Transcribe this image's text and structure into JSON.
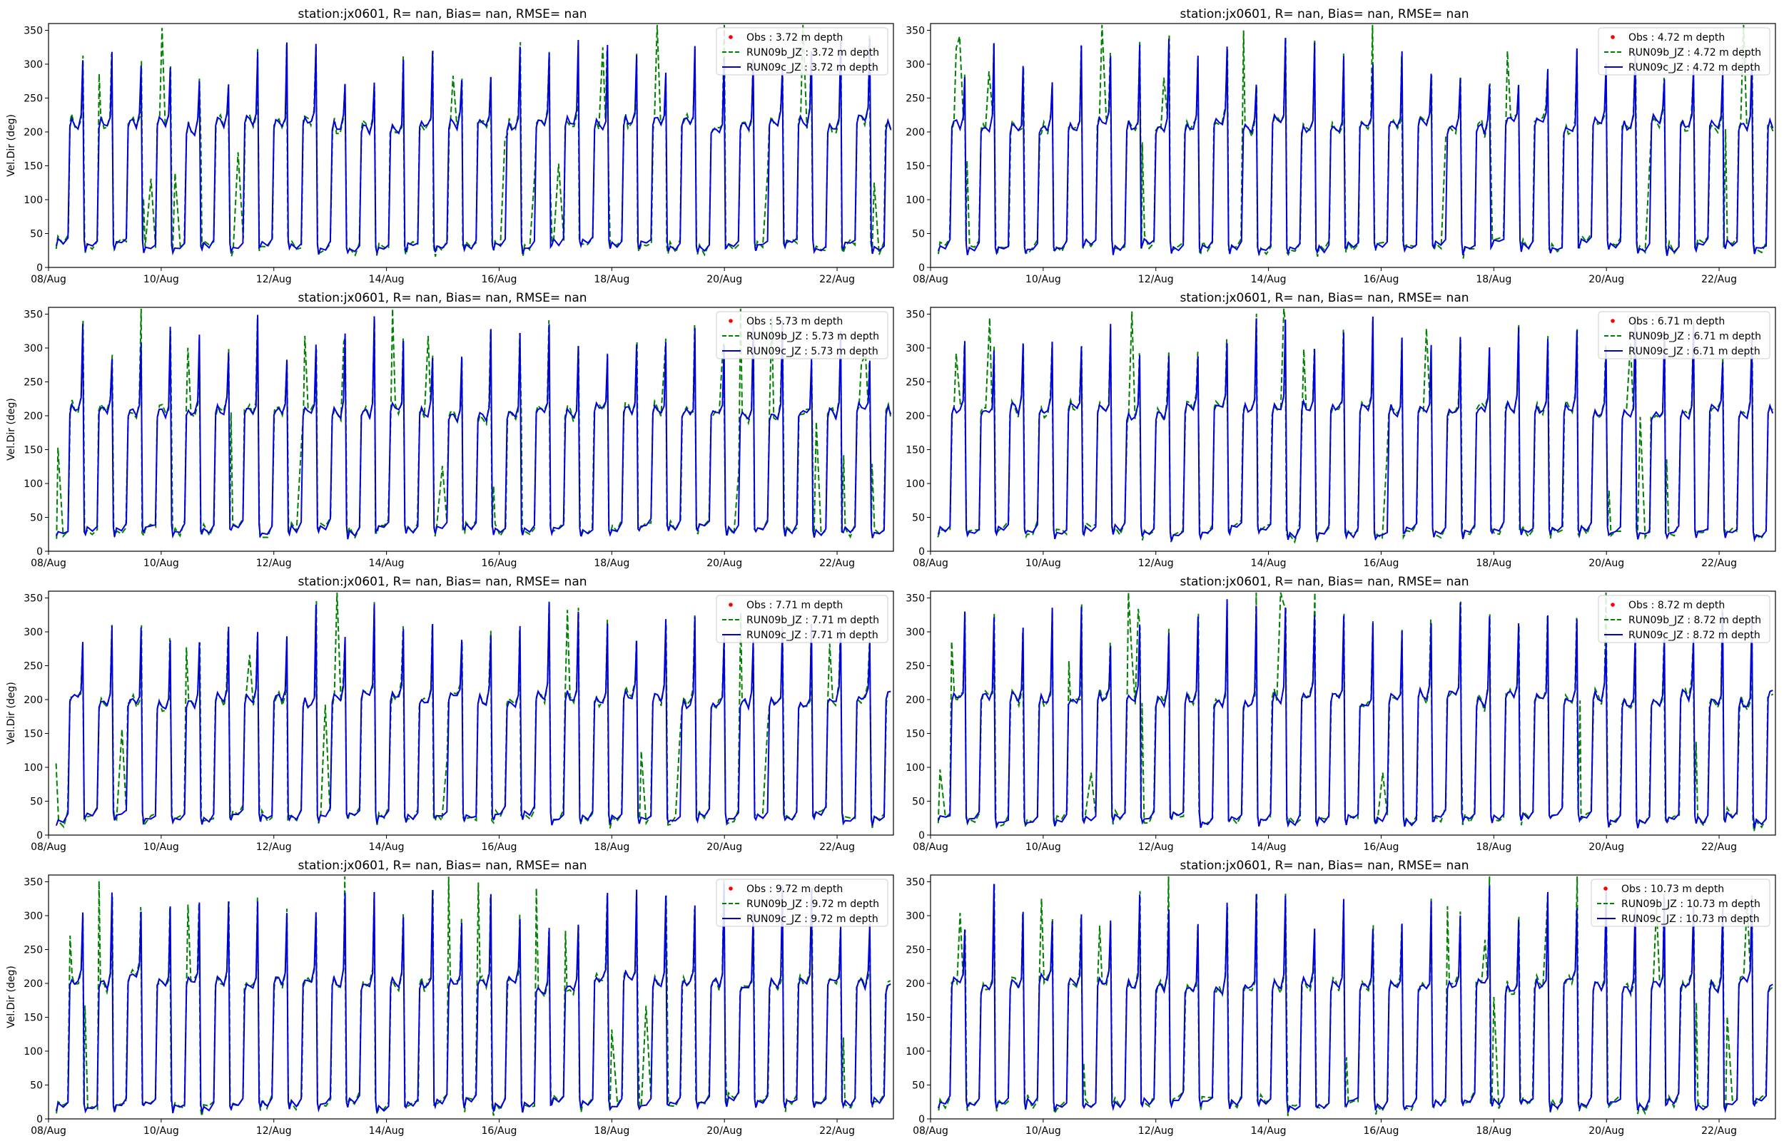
{
  "figure": {
    "background": "#ffffff",
    "colors": {
      "obs": "#ff0000",
      "run09b": "#008000",
      "run09c": "#0000dd"
    }
  },
  "chart_data": [
    {
      "type": "line",
      "title": "station:jx0601, R=   nan, Bias=    nan, RMSE=    nan",
      "ylabel": "Vel.Dir (deg)",
      "xlabel": "",
      "xlim": [
        "08/Aug 00:00",
        "23/Aug 00:00"
      ],
      "ylim": [
        0,
        360
      ],
      "xticks": [
        "08/Aug",
        "10/Aug",
        "12/Aug",
        "14/Aug",
        "16/Aug",
        "18/Aug",
        "20/Aug",
        "22/Aug"
      ],
      "yticks": [
        0,
        50,
        100,
        150,
        200,
        250,
        300,
        350
      ],
      "legend_position": "top-right",
      "series": [
        {
          "name": "Obs : 3.72 m depth",
          "style": "markers",
          "values": []
        },
        {
          "name": "RUN09b_JZ : 3.72 m depth",
          "style": "dashed"
        },
        {
          "name": "RUN09c_JZ : 3.72 m depth",
          "style": "solid"
        }
      ],
      "pattern": {
        "period_hours": 12.42,
        "high_deg": 210,
        "low_deg": 30,
        "spike_deg": 290
      }
    },
    {
      "type": "line",
      "title": "station:jx0601, R=   nan, Bias=    nan, RMSE=    nan",
      "ylabel": "",
      "xlabel": "",
      "xlim": [
        "08/Aug 00:00",
        "23/Aug 00:00"
      ],
      "ylim": [
        0,
        360
      ],
      "xticks": [
        "08/Aug",
        "10/Aug",
        "12/Aug",
        "14/Aug",
        "16/Aug",
        "18/Aug",
        "20/Aug",
        "22/Aug"
      ],
      "yticks": [
        0,
        50,
        100,
        150,
        200,
        250,
        300,
        350
      ],
      "legend_position": "top-right",
      "series": [
        {
          "name": "Obs : 4.72 m depth",
          "style": "markers",
          "values": []
        },
        {
          "name": "RUN09b_JZ : 4.72 m depth",
          "style": "dashed"
        },
        {
          "name": "RUN09c_JZ : 4.72 m depth",
          "style": "solid"
        }
      ],
      "pattern": {
        "period_hours": 12.42,
        "high_deg": 210,
        "low_deg": 30,
        "spike_deg": 290
      }
    },
    {
      "type": "line",
      "title": "station:jx0601, R=   nan, Bias=    nan, RMSE=    nan",
      "ylabel": "Vel.Dir (deg)",
      "xlabel": "",
      "xlim": [
        "08/Aug 00:00",
        "23/Aug 00:00"
      ],
      "ylim": [
        0,
        360
      ],
      "xticks": [
        "08/Aug",
        "10/Aug",
        "12/Aug",
        "14/Aug",
        "16/Aug",
        "18/Aug",
        "20/Aug",
        "22/Aug"
      ],
      "yticks": [
        0,
        50,
        100,
        150,
        200,
        250,
        300,
        350
      ],
      "legend_position": "top-right",
      "series": [
        {
          "name": "Obs : 5.73 m depth",
          "style": "markers",
          "values": []
        },
        {
          "name": "RUN09b_JZ : 5.73 m depth",
          "style": "dashed"
        },
        {
          "name": "RUN09c_JZ : 5.73 m depth",
          "style": "solid"
        }
      ],
      "pattern": {
        "period_hours": 12.42,
        "high_deg": 205,
        "low_deg": 30,
        "spike_deg": 300
      }
    },
    {
      "type": "line",
      "title": "station:jx0601, R=   nan, Bias=    nan, RMSE=    nan",
      "ylabel": "",
      "xlabel": "",
      "xlim": [
        "08/Aug 00:00",
        "23/Aug 00:00"
      ],
      "ylim": [
        0,
        360
      ],
      "xticks": [
        "08/Aug",
        "10/Aug",
        "12/Aug",
        "14/Aug",
        "16/Aug",
        "18/Aug",
        "20/Aug",
        "22/Aug"
      ],
      "yticks": [
        0,
        50,
        100,
        150,
        200,
        250,
        300,
        350
      ],
      "legend_position": "top-right",
      "series": [
        {
          "name": "Obs : 6.71 m depth",
          "style": "markers",
          "values": []
        },
        {
          "name": "RUN09b_JZ : 6.71 m depth",
          "style": "dashed"
        },
        {
          "name": "RUN09c_JZ : 6.71 m depth",
          "style": "solid"
        }
      ],
      "pattern": {
        "period_hours": 12.42,
        "high_deg": 205,
        "low_deg": 28,
        "spike_deg": 300
      }
    },
    {
      "type": "line",
      "title": "station:jx0601, R=   nan, Bias=    nan, RMSE=    nan",
      "ylabel": "Vel.Dir (deg)",
      "xlabel": "",
      "xlim": [
        "08/Aug 00:00",
        "23/Aug 00:00"
      ],
      "ylim": [
        0,
        360
      ],
      "xticks": [
        "08/Aug",
        "10/Aug",
        "12/Aug",
        "14/Aug",
        "16/Aug",
        "18/Aug",
        "20/Aug",
        "22/Aug"
      ],
      "yticks": [
        0,
        50,
        100,
        150,
        200,
        250,
        300,
        350
      ],
      "legend_position": "top-right",
      "series": [
        {
          "name": "Obs : 7.71 m depth",
          "style": "markers",
          "values": []
        },
        {
          "name": "RUN09b_JZ : 7.71 m depth",
          "style": "dashed"
        },
        {
          "name": "RUN09c_JZ : 7.71 m depth",
          "style": "solid"
        }
      ],
      "pattern": {
        "period_hours": 12.42,
        "high_deg": 200,
        "low_deg": 25,
        "spike_deg": 300
      }
    },
    {
      "type": "line",
      "title": "station:jx0601, R=   nan, Bias=    nan, RMSE=    nan",
      "ylabel": "",
      "xlabel": "",
      "xlim": [
        "08/Aug 00:00",
        "23/Aug 00:00"
      ],
      "ylim": [
        0,
        360
      ],
      "xticks": [
        "08/Aug",
        "10/Aug",
        "12/Aug",
        "14/Aug",
        "16/Aug",
        "18/Aug",
        "20/Aug",
        "22/Aug"
      ],
      "yticks": [
        0,
        50,
        100,
        150,
        200,
        250,
        300,
        350
      ],
      "legend_position": "top-right",
      "series": [
        {
          "name": "Obs : 8.72 m depth",
          "style": "markers",
          "values": []
        },
        {
          "name": "RUN09b_JZ : 8.72 m depth",
          "style": "dashed"
        },
        {
          "name": "RUN09c_JZ : 8.72 m depth",
          "style": "solid"
        }
      ],
      "pattern": {
        "period_hours": 12.42,
        "high_deg": 200,
        "low_deg": 22,
        "spike_deg": 300
      }
    },
    {
      "type": "line",
      "title": "station:jx0601, R=   nan, Bias=    nan, RMSE=    nan",
      "ylabel": "Vel.Dir (deg)",
      "xlabel": "",
      "xlim": [
        "08/Aug 00:00",
        "23/Aug 00:00"
      ],
      "ylim": [
        0,
        360
      ],
      "xticks": [
        "08/Aug",
        "10/Aug",
        "12/Aug",
        "14/Aug",
        "16/Aug",
        "18/Aug",
        "20/Aug",
        "22/Aug"
      ],
      "yticks": [
        0,
        50,
        100,
        150,
        200,
        250,
        300,
        350
      ],
      "legend_position": "top-right",
      "series": [
        {
          "name": "Obs : 9.72 m depth",
          "style": "markers",
          "values": []
        },
        {
          "name": "RUN09b_JZ : 9.72 m depth",
          "style": "dashed"
        },
        {
          "name": "RUN09c_JZ : 9.72 m depth",
          "style": "solid"
        }
      ],
      "pattern": {
        "period_hours": 12.42,
        "high_deg": 200,
        "low_deg": 20,
        "spike_deg": 300
      }
    },
    {
      "type": "line",
      "title": "station:jx0601, R=   nan, Bias=    nan, RMSE=    nan",
      "ylabel": "",
      "xlabel": "",
      "xlim": [
        "08/Aug 00:00",
        "23/Aug 00:00"
      ],
      "ylim": [
        0,
        360
      ],
      "xticks": [
        "08/Aug",
        "10/Aug",
        "12/Aug",
        "14/Aug",
        "16/Aug",
        "18/Aug",
        "20/Aug",
        "22/Aug"
      ],
      "yticks": [
        0,
        50,
        100,
        150,
        200,
        250,
        300,
        350
      ],
      "legend_position": "top-right",
      "series": [
        {
          "name": "Obs : 10.73 m depth",
          "style": "markers",
          "values": []
        },
        {
          "name": "RUN09b_JZ : 10.73 m depth",
          "style": "dashed"
        },
        {
          "name": "RUN09c_JZ : 10.73 m depth",
          "style": "solid"
        }
      ],
      "pattern": {
        "period_hours": 12.42,
        "high_deg": 198,
        "low_deg": 20,
        "spike_deg": 300
      }
    }
  ]
}
